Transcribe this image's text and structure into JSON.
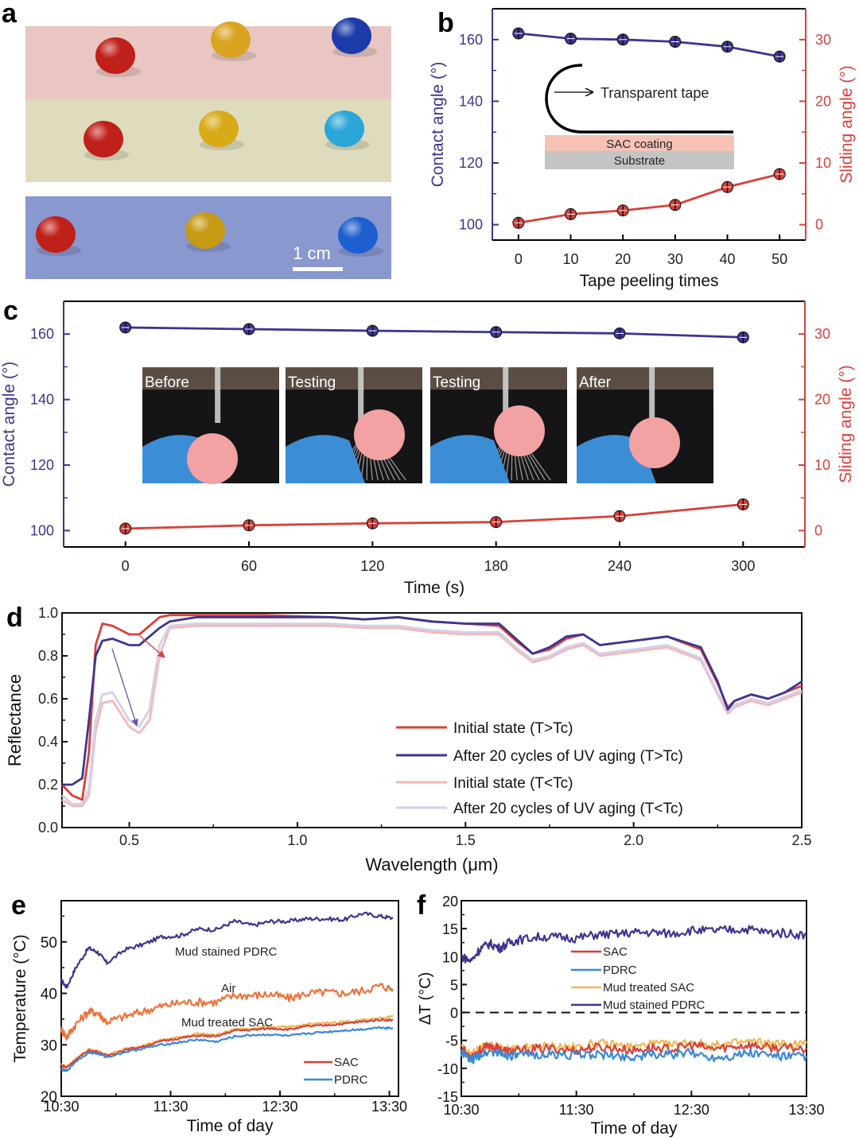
{
  "figure": {
    "panel_labels": [
      "a",
      "b",
      "c",
      "d",
      "e",
      "f"
    ]
  },
  "panel_a": {
    "scale_bar_label": "1 cm",
    "rows": [
      {
        "background": "#e9c6c2",
        "droplets": [
          "#c0201a",
          "#d9a420",
          "#1c3aa8"
        ]
      },
      {
        "background": "#dedcbd",
        "droplets": [
          "#c0201a",
          "#d9aa18",
          "#2aa6d8"
        ]
      },
      {
        "background": "#8a98d0",
        "droplets": [
          "#c0201a",
          "#c69a14",
          "#1e5fd0"
        ]
      }
    ]
  },
  "colors": {
    "blue_axis": "#3d3591",
    "red_axis": "#d9403a",
    "blue_line": "#3d3591",
    "red_line": "#d9403a",
    "pink_line": "#f4b8b8",
    "lavender_line": "#d6cfe8",
    "orange_line": "#f07038",
    "light_blue_line": "#3a88d8",
    "yellow_line": "#f0b850",
    "sac_coating": "#f6c2b6",
    "substrate": "#c4c4c4"
  },
  "chart_data": [
    {
      "id": "b",
      "type": "line",
      "title": "",
      "xlabel": "Tape peeling times",
      "ylabel": "Contact angle (°)",
      "y2label": "Sliding angle (°)",
      "x": [
        0,
        10,
        20,
        30,
        40,
        50
      ],
      "xticks": [
        "0",
        "10",
        "20",
        "30",
        "40",
        "50"
      ],
      "xlim": [
        -5,
        55
      ],
      "ylim": [
        95,
        170
      ],
      "y2lim": [
        -2.5,
        35
      ],
      "yticks": [
        "100",
        "120",
        "140",
        "160"
      ],
      "y2ticks": [
        "0",
        "10",
        "20",
        "30"
      ],
      "series": [
        {
          "name": "Contact angle",
          "axis": "left",
          "values": [
            162,
            160.3,
            160,
            159.3,
            157.7,
            154.5
          ]
        },
        {
          "name": "Sliding angle",
          "axis": "right",
          "values": [
            0.3,
            1.7,
            2.3,
            3.2,
            6.1,
            8.2
          ]
        }
      ],
      "inset": {
        "tape_label": "Transparent tape",
        "coating_label": "SAC coating",
        "substrate_label": "Substrate"
      }
    },
    {
      "id": "c",
      "type": "line",
      "title": "",
      "xlabel": "Time (s)",
      "ylabel": "Contact angle (°)",
      "y2label": "Sliding angle (°)",
      "x": [
        0,
        60,
        120,
        180,
        240,
        300
      ],
      "xticks": [
        "0",
        "60",
        "120",
        "180",
        "240",
        "300"
      ],
      "xlim": [
        -30,
        330
      ],
      "ylim": [
        95,
        170
      ],
      "y2lim": [
        -2.5,
        35
      ],
      "yticks": [
        "100",
        "120",
        "140",
        "160"
      ],
      "y2ticks": [
        "0",
        "10",
        "20",
        "30"
      ],
      "series": [
        {
          "name": "Contact angle",
          "axis": "left",
          "values": [
            162,
            161.5,
            161,
            160.6,
            160.2,
            159
          ]
        },
        {
          "name": "Sliding angle",
          "axis": "right",
          "values": [
            0.3,
            0.8,
            1.1,
            1.3,
            2.2,
            4
          ]
        }
      ],
      "inset_photos": [
        "Before",
        "Testing",
        "Testing",
        "After"
      ]
    },
    {
      "id": "d",
      "type": "line",
      "title": "",
      "xlabel": "Wavelength (μm)",
      "ylabel": "Reflectance",
      "xlim": [
        0.3,
        2.5
      ],
      "ylim": [
        0,
        1.0
      ],
      "xticks": [
        "0.5",
        "1.0",
        "1.5",
        "2.0",
        "2.5"
      ],
      "yticks": [
        "0.0",
        "0.2",
        "0.4",
        "0.6",
        "0.8",
        "1.0"
      ],
      "legend_position": "lower-right",
      "x": [
        0.3,
        0.33,
        0.36,
        0.38,
        0.4,
        0.42,
        0.45,
        0.5,
        0.53,
        0.56,
        0.59,
        0.62,
        0.7,
        0.9,
        1.1,
        1.2,
        1.3,
        1.4,
        1.5,
        1.6,
        1.65,
        1.7,
        1.75,
        1.8,
        1.85,
        1.9,
        2.0,
        2.1,
        2.2,
        2.25,
        2.28,
        2.3,
        2.35,
        2.4,
        2.45,
        2.5
      ],
      "series": [
        {
          "name": "Initial state (T>Tc)",
          "values": [
            0.2,
            0.15,
            0.13,
            0.35,
            0.85,
            0.95,
            0.94,
            0.9,
            0.9,
            0.94,
            0.98,
            0.99,
            0.99,
            0.99,
            0.98,
            0.97,
            0.98,
            0.96,
            0.95,
            0.94,
            0.87,
            0.81,
            0.83,
            0.88,
            0.9,
            0.85,
            0.87,
            0.89,
            0.83,
            0.67,
            0.56,
            0.59,
            0.62,
            0.6,
            0.63,
            0.66
          ]
        },
        {
          "name": "After 20 cycles of UV aging (T>Tc)",
          "values": [
            0.2,
            0.2,
            0.23,
            0.5,
            0.8,
            0.87,
            0.88,
            0.85,
            0.85,
            0.89,
            0.93,
            0.96,
            0.98,
            0.98,
            0.98,
            0.97,
            0.98,
            0.96,
            0.95,
            0.95,
            0.88,
            0.81,
            0.84,
            0.89,
            0.9,
            0.85,
            0.87,
            0.89,
            0.84,
            0.68,
            0.55,
            0.59,
            0.62,
            0.6,
            0.63,
            0.68
          ]
        },
        {
          "name": "Initial state (T<Tc)",
          "values": [
            0.13,
            0.1,
            0.1,
            0.15,
            0.45,
            0.58,
            0.59,
            0.47,
            0.44,
            0.5,
            0.8,
            0.93,
            0.94,
            0.94,
            0.94,
            0.93,
            0.93,
            0.91,
            0.9,
            0.9,
            0.83,
            0.77,
            0.79,
            0.83,
            0.85,
            0.8,
            0.82,
            0.84,
            0.78,
            0.62,
            0.53,
            0.56,
            0.59,
            0.57,
            0.6,
            0.63
          ]
        },
        {
          "name": "After 20 cycles of UV aging (T<Tc)",
          "values": [
            0.15,
            0.11,
            0.11,
            0.18,
            0.5,
            0.62,
            0.63,
            0.5,
            0.47,
            0.55,
            0.85,
            0.94,
            0.95,
            0.95,
            0.95,
            0.94,
            0.94,
            0.92,
            0.91,
            0.91,
            0.84,
            0.78,
            0.8,
            0.84,
            0.86,
            0.81,
            0.83,
            0.85,
            0.79,
            0.63,
            0.54,
            0.57,
            0.6,
            0.58,
            0.61,
            0.64
          ]
        }
      ]
    },
    {
      "id": "e",
      "type": "line",
      "title": "",
      "xlabel": "Time of day",
      "ylabel": "Temperature (°C)",
      "xlim_minutes": [
        0,
        185
      ],
      "ylim": [
        20,
        58
      ],
      "xticks": [
        "10:30",
        "11:30",
        "12:30",
        "13:30"
      ],
      "xtick_minutes": [
        0,
        60,
        120,
        180
      ],
      "yticks": [
        "20",
        "30",
        "40",
        "50"
      ],
      "x_minutes": [
        0,
        3,
        8,
        15,
        20,
        25,
        35,
        45,
        55,
        65,
        75,
        85,
        95,
        105,
        115,
        125,
        135,
        145,
        155,
        165,
        175,
        182
      ],
      "series": [
        {
          "name": "Mud stained PDRC",
          "label_inline": true,
          "values": [
            42.5,
            41.2,
            45,
            48.8,
            48,
            45.9,
            48.5,
            49.5,
            51,
            51.2,
            52.5,
            52.4,
            54,
            53.2,
            54,
            54,
            54.5,
            54.5,
            54.3,
            55.5,
            55,
            54.6
          ]
        },
        {
          "name": "Air",
          "label_inline": true,
          "values": [
            33,
            31.5,
            34,
            36.5,
            36.2,
            34.5,
            35.5,
            36.5,
            37.5,
            38.2,
            38.3,
            38.3,
            39.6,
            39.6,
            39.8,
            39,
            40,
            40.2,
            40,
            40.5,
            41.5,
            40.8
          ]
        },
        {
          "name": "Mud treated SAC",
          "label_inline": true,
          "values": [
            26.2,
            25.7,
            27.3,
            29.1,
            28.8,
            28,
            29.2,
            29.9,
            30.9,
            31.5,
            32.2,
            31.9,
            33,
            33.2,
            33.5,
            33.4,
            34,
            34.2,
            34.5,
            34.8,
            35.2,
            35.5
          ]
        },
        {
          "name": "SAC",
          "legend": true,
          "values": [
            26,
            25.6,
            27.1,
            28.9,
            28.6,
            27.9,
            29,
            29.7,
            30.7,
            31.3,
            31.8,
            31.6,
            32.8,
            32.9,
            33.2,
            33,
            33.6,
            33.8,
            34.1,
            34.5,
            34.9,
            34.8
          ]
        },
        {
          "name": "PDRC",
          "legend": true,
          "values": [
            25.2,
            24.9,
            26.8,
            28.5,
            28.3,
            27.6,
            28.6,
            29.3,
            30,
            30.5,
            31,
            30.6,
            31.6,
            31.9,
            32,
            31.7,
            32.2,
            32.5,
            32.8,
            33,
            33.4,
            33.2
          ]
        }
      ]
    },
    {
      "id": "f",
      "type": "line",
      "title": "",
      "xlabel": "Time of day",
      "ylabel": "ΔT (°C)",
      "xlim_minutes": [
        0,
        180
      ],
      "ylim": [
        -15,
        20
      ],
      "xticks": [
        "10:30",
        "11:30",
        "12:30",
        "13:30"
      ],
      "xtick_minutes": [
        0,
        60,
        120,
        180
      ],
      "yticks": [
        "-15",
        "-10",
        "-5",
        "0",
        "5",
        "10",
        "15",
        "20"
      ],
      "reference_line": 0,
      "legend_position": "center",
      "x_minutes": [
        0,
        5,
        10,
        15,
        20,
        25,
        30,
        40,
        50,
        60,
        70,
        80,
        90,
        100,
        110,
        120,
        130,
        140,
        150,
        160,
        170,
        180
      ],
      "series": [
        {
          "name": "SAC",
          "values": [
            -6.5,
            -7.8,
            -6.7,
            -6,
            -6.5,
            -7,
            -6.8,
            -6.5,
            -6.5,
            -6.8,
            -6.2,
            -6.4,
            -6.8,
            -6.3,
            -6.6,
            -5.8,
            -6.5,
            -6.2,
            -5.8,
            -6.3,
            -6.4,
            -6.4
          ]
        },
        {
          "name": "PDRC",
          "values": [
            -7.2,
            -8.6,
            -7.6,
            -7,
            -7.3,
            -7.7,
            -7.8,
            -7.5,
            -7.6,
            -7.6,
            -7.5,
            -7.8,
            -8,
            -7.5,
            -7.6,
            -7.2,
            -8,
            -7.8,
            -7.2,
            -7.6,
            -7.9,
            -7.8
          ]
        },
        {
          "name": "Mud treated SAC",
          "values": [
            -6.3,
            -7.6,
            -6.4,
            -5.8,
            -6.3,
            -6.8,
            -6.5,
            -6.1,
            -6,
            -6.3,
            -5.5,
            -5.8,
            -6.2,
            -5.6,
            -5.9,
            -5.2,
            -6,
            -5.6,
            -5.2,
            -5.5,
            -5.7,
            -5.5
          ]
        },
        {
          "name": "Mud stained PDRC",
          "values": [
            10,
            9.2,
            11.5,
            12.3,
            11.5,
            12.5,
            13,
            13.5,
            13.5,
            13.3,
            13.9,
            14,
            14.3,
            14.3,
            14.1,
            14.7,
            14.6,
            14.8,
            14.9,
            14.3,
            14.2,
            13.8
          ]
        }
      ]
    }
  ]
}
